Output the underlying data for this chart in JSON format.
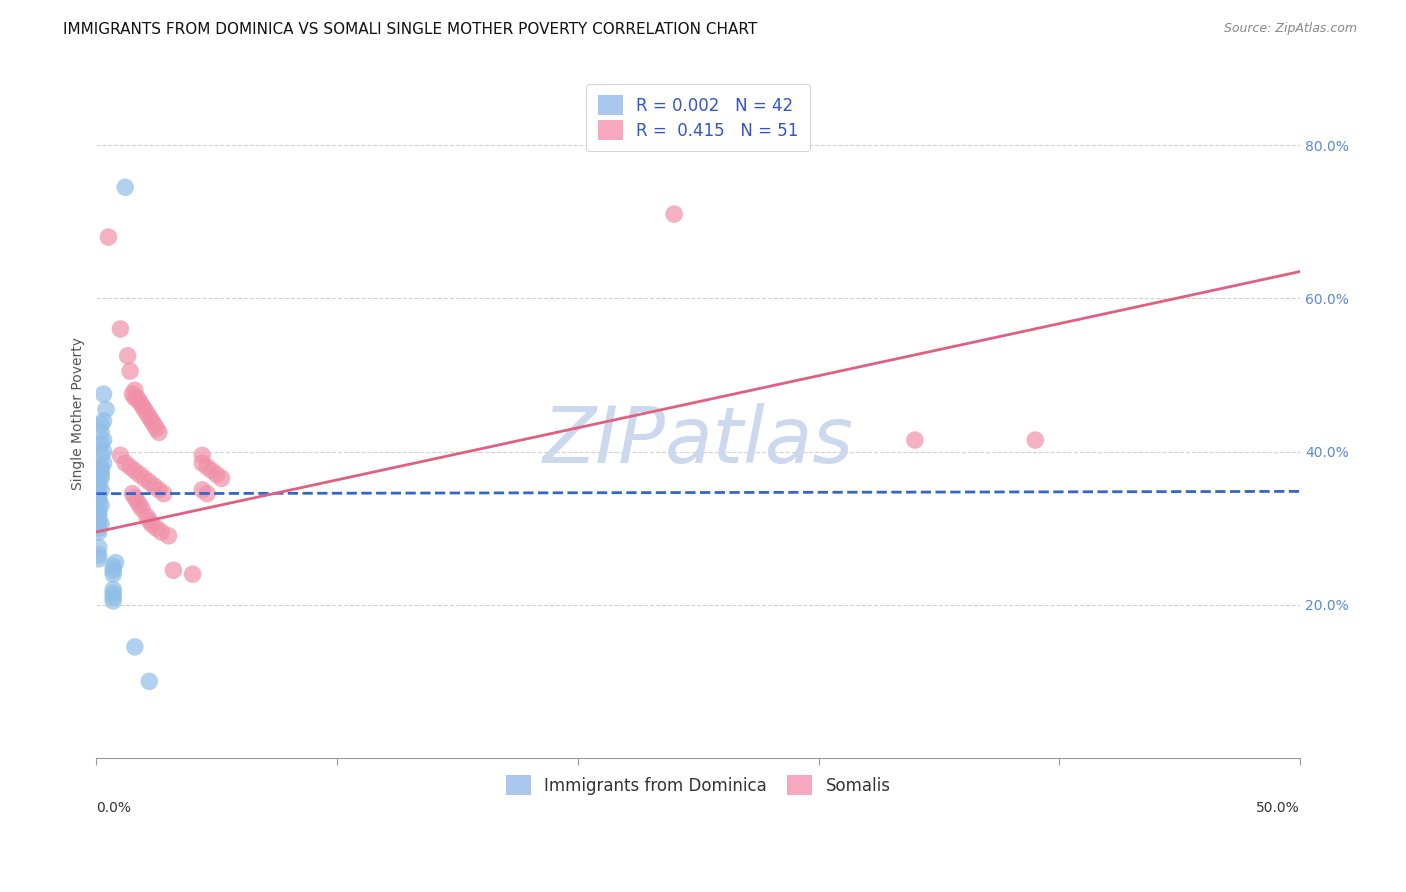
{
  "title": "IMMIGRANTS FROM DOMINICA VS SOMALI SINGLE MOTHER POVERTY CORRELATION CHART",
  "source": "Source: ZipAtlas.com",
  "ylabel": "Single Mother Poverty",
  "right_yticks": [
    "20.0%",
    "40.0%",
    "60.0%",
    "80.0%"
  ],
  "right_ytick_vals": [
    0.2,
    0.4,
    0.6,
    0.8
  ],
  "xlim": [
    0.0,
    0.5
  ],
  "ylim": [
    0.0,
    0.9
  ],
  "legend_label1": "Immigrants from Dominica",
  "legend_label2": "Somalis",
  "watermark": "ZIPatlas",
  "blue_scatter_x": [
    0.012,
    0.003,
    0.004,
    0.003,
    0.002,
    0.002,
    0.003,
    0.002,
    0.003,
    0.002,
    0.003,
    0.002,
    0.002,
    0.002,
    0.002,
    0.001,
    0.001,
    0.002,
    0.001,
    0.001,
    0.001,
    0.002,
    0.001,
    0.001,
    0.001,
    0.001,
    0.002,
    0.001,
    0.001,
    0.001,
    0.001,
    0.001,
    0.008,
    0.007,
    0.007,
    0.007,
    0.007,
    0.007,
    0.007,
    0.007,
    0.016,
    0.022
  ],
  "blue_scatter_y": [
    0.745,
    0.475,
    0.455,
    0.44,
    0.435,
    0.425,
    0.415,
    0.41,
    0.4,
    0.395,
    0.385,
    0.38,
    0.375,
    0.37,
    0.365,
    0.36,
    0.355,
    0.35,
    0.345,
    0.34,
    0.335,
    0.33,
    0.325,
    0.32,
    0.315,
    0.31,
    0.305,
    0.3,
    0.295,
    0.275,
    0.265,
    0.26,
    0.255,
    0.25,
    0.245,
    0.24,
    0.22,
    0.215,
    0.21,
    0.205,
    0.145,
    0.1
  ],
  "pink_scatter_x": [
    0.005,
    0.01,
    0.013,
    0.014,
    0.016,
    0.015,
    0.016,
    0.017,
    0.018,
    0.019,
    0.02,
    0.021,
    0.022,
    0.023,
    0.024,
    0.025,
    0.026,
    0.01,
    0.012,
    0.014,
    0.016,
    0.018,
    0.02,
    0.022,
    0.024,
    0.026,
    0.028,
    0.24,
    0.044,
    0.044,
    0.046,
    0.048,
    0.05,
    0.052,
    0.044,
    0.046,
    0.34,
    0.39,
    0.015,
    0.016,
    0.017,
    0.018,
    0.019,
    0.021,
    0.022,
    0.023,
    0.025,
    0.027,
    0.03,
    0.032,
    0.04
  ],
  "pink_scatter_y": [
    0.68,
    0.56,
    0.525,
    0.505,
    0.48,
    0.475,
    0.47,
    0.47,
    0.465,
    0.46,
    0.455,
    0.45,
    0.445,
    0.44,
    0.435,
    0.43,
    0.425,
    0.395,
    0.385,
    0.38,
    0.375,
    0.37,
    0.365,
    0.36,
    0.355,
    0.35,
    0.345,
    0.71,
    0.395,
    0.385,
    0.38,
    0.375,
    0.37,
    0.365,
    0.35,
    0.345,
    0.415,
    0.415,
    0.345,
    0.34,
    0.335,
    0.33,
    0.325,
    0.315,
    0.31,
    0.305,
    0.3,
    0.295,
    0.29,
    0.245,
    0.24
  ],
  "blue_line_x": [
    0.0,
    0.5
  ],
  "blue_line_y": [
    0.345,
    0.348
  ],
  "pink_line_x": [
    0.0,
    0.5
  ],
  "pink_line_y": [
    0.295,
    0.635
  ],
  "blue_scatter_color": "#90bee8",
  "pink_scatter_color": "#f090a8",
  "blue_line_color": "#3366cc",
  "pink_line_color": "#e06080",
  "blue_legend_color": "#aac8ee",
  "pink_legend_color": "#f5a8be",
  "grid_color": "#cccccc",
  "background_color": "#ffffff",
  "title_fontsize": 11,
  "source_fontsize": 9,
  "axis_label_fontsize": 10,
  "tick_fontsize": 10,
  "legend_fontsize": 12,
  "watermark_color": "#ccd8ee",
  "watermark_fontsize": 56
}
